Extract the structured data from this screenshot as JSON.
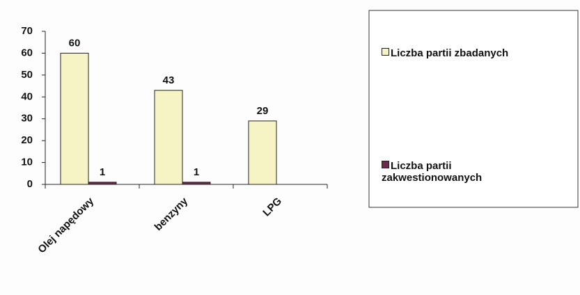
{
  "chart_data": {
    "type": "bar",
    "categories": [
      "Olej napędowy",
      "benzyny",
      "LPG"
    ],
    "series": [
      {
        "name": "Liczba partii zbadanych",
        "color": "#f6f4c4",
        "values": [
          60,
          43,
          29
        ]
      },
      {
        "name": "Liczba partii zakwestionowanych",
        "color": "#6e2a4c",
        "values": [
          1,
          1,
          null
        ]
      }
    ],
    "ylim": [
      0,
      70
    ],
    "yticks": [
      0,
      10,
      20,
      30,
      40,
      50,
      60,
      70
    ],
    "legend": "right"
  }
}
